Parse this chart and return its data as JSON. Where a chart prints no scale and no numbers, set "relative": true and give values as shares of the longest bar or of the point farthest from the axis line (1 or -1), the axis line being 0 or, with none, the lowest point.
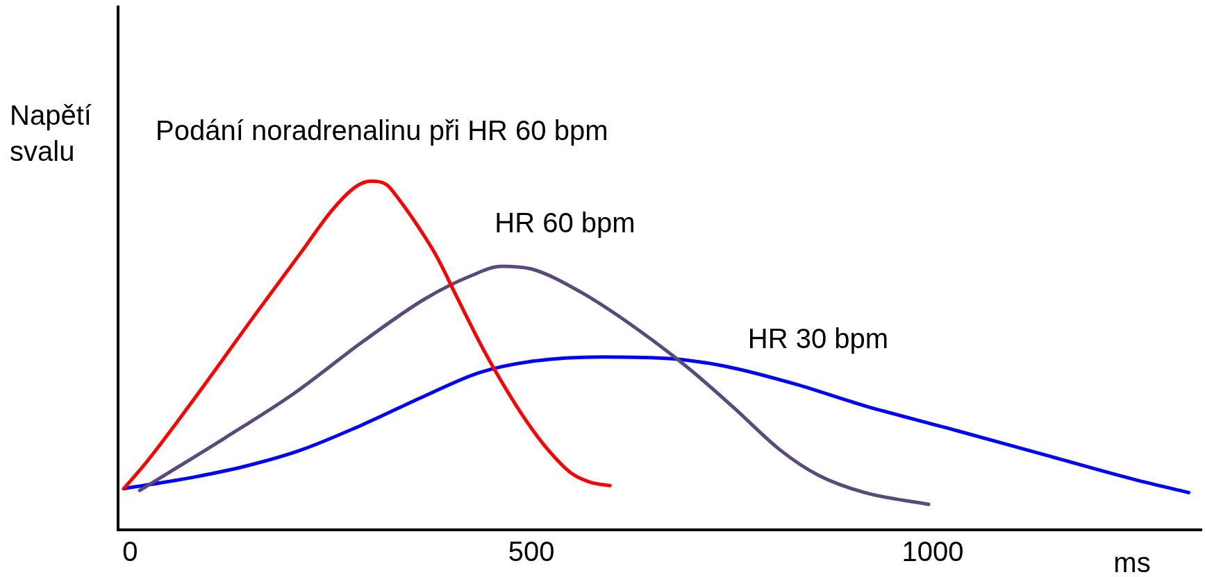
{
  "chart_data": {
    "type": "line",
    "relative": true,
    "xlabel": "ms",
    "ylabel": "Napětí svalu",
    "xlim": [
      -15,
      1335
    ],
    "xticks": [
      0,
      500,
      1000
    ],
    "legend": false,
    "grid": false,
    "marker": "none",
    "line_style": "solid",
    "series": [
      {
        "name": "Podání noradrenalinu při HR 60 bpm",
        "color": "#ff0000",
        "x": [
          -8,
          21,
          79,
          156,
          213,
          252,
          281,
          300,
          319,
          334,
          358,
          382,
          406,
          435,
          459,
          492,
          521,
          550,
          574,
          598
        ],
        "values": [
          0.118,
          0.196,
          0.373,
          0.618,
          0.796,
          0.918,
          0.984,
          1,
          0.991,
          0.951,
          0.873,
          0.784,
          0.673,
          0.54,
          0.44,
          0.318,
          0.229,
          0.162,
          0.136,
          0.127
        ]
      },
      {
        "name": "HR 60 bpm",
        "color": "#5a4a7a",
        "x": [
          12,
          117,
          204,
          290,
          367,
          425,
          463,
          502,
          560,
          627,
          694,
          752,
          810,
          858,
          915,
          995
        ],
        "values": [
          0.113,
          0.262,
          0.391,
          0.54,
          0.662,
          0.729,
          0.756,
          0.747,
          0.684,
          0.584,
          0.467,
          0.351,
          0.229,
          0.156,
          0.107,
          0.073
        ]
      },
      {
        "name": "HR 30 bpm",
        "color": "#0000ff",
        "x": [
          -8,
          79,
          146,
          213,
          290,
          367,
          435,
          502,
          588,
          675,
          742,
          829,
          915,
          1031,
          1146,
          1252,
          1319
        ],
        "values": [
          0.118,
          0.151,
          0.184,
          0.229,
          0.302,
          0.384,
          0.451,
          0.484,
          0.496,
          0.491,
          0.469,
          0.418,
          0.356,
          0.284,
          0.211,
          0.144,
          0.107
        ]
      }
    ]
  }
}
